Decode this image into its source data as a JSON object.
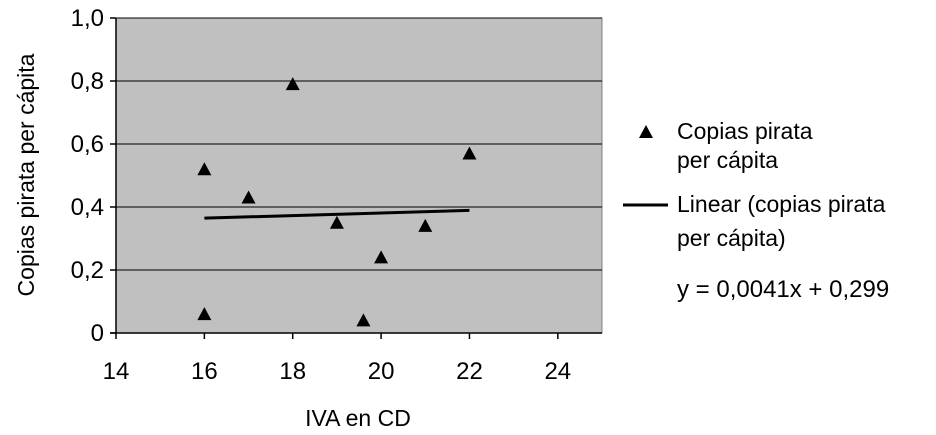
{
  "chart_data": {
    "type": "scatter",
    "xlabel": "IVA en CD",
    "ylabel": "Copias pirata per cápita",
    "xlim": [
      14,
      25
    ],
    "ylim": [
      0,
      1.0
    ],
    "x_ticks": [
      14,
      16,
      18,
      20,
      22,
      24
    ],
    "x_tick_labels": [
      "14",
      "16",
      "18",
      "20",
      "22",
      "24"
    ],
    "y_ticks": [
      0,
      0.2,
      0.4,
      0.6,
      0.8,
      1.0
    ],
    "y_tick_labels": [
      "0",
      "0,2",
      "0,4",
      "0,6",
      "0,8",
      "1,0"
    ],
    "grid": "horizontal",
    "plot_background": "#c0c0c0",
    "series": [
      {
        "name": "Copias pirata per cápita",
        "marker": "triangle",
        "x": [
          16,
          16,
          17,
          18,
          19,
          19.6,
          20,
          21,
          22
        ],
        "y": [
          0.52,
          0.06,
          0.43,
          0.79,
          0.35,
          0.04,
          0.24,
          0.34,
          0.57
        ]
      }
    ],
    "trendline": {
      "name": "Linear (copias pirata per cápita)",
      "x_range": [
        16,
        22
      ],
      "slope": 0.0041,
      "intercept": 0.299,
      "equation": "y = 0,0041x + 0,299"
    },
    "legend": {
      "placement": "right",
      "series_lines": [
        "Copias pirata",
        "per cápita"
      ],
      "trend_lines": [
        "Linear (copias pirata",
        "per cápita)"
      ]
    }
  }
}
